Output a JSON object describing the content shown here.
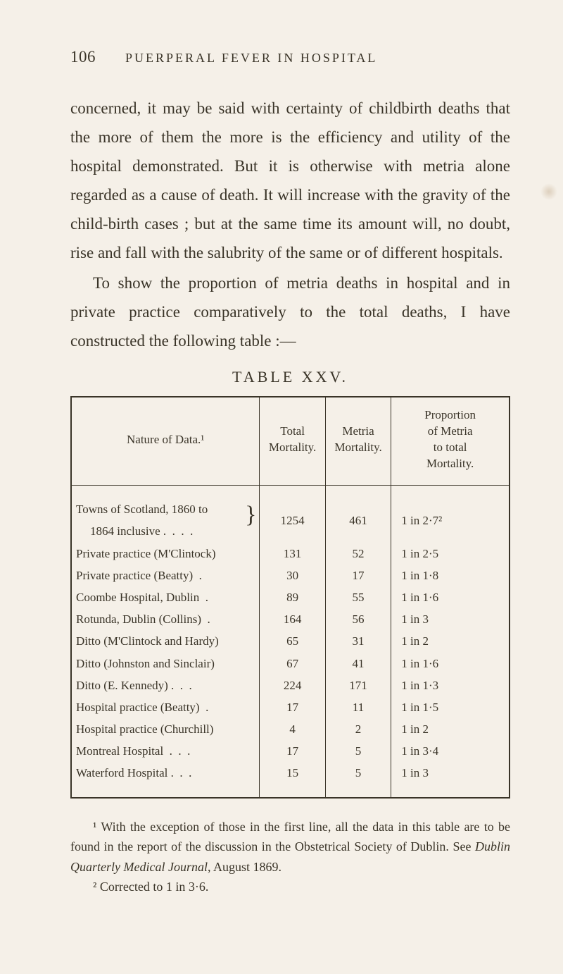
{
  "header": {
    "page_number": "106",
    "running_head": "PUERPERAL FEVER IN HOSPITAL"
  },
  "paragraphs": {
    "p1": "concerned, it may be said with certainty of childbirth deaths that the more of them the more is the efficiency and utility of the hospital demonstrated. But it is otherwise with metria alone regarded as a cause of death. It will increase with the gravity of the child-birth cases ; but at the same time its amount will, no doubt, rise and fall with the salubrity of the same or of different hospitals.",
    "p2": "To show the proportion of metria deaths in hospital and in private practice comparatively to the total deaths, I have constructed the following table :—"
  },
  "table": {
    "title": "TABLE XXV.",
    "columns": {
      "c1": "Nature of Data.¹",
      "c2": "Total Mortality.",
      "c3": "Metria Mortality.",
      "c4_line1": "Proportion",
      "c4_line2": "of Metria",
      "c4_line3": "to total",
      "c4_line4": "Mortality."
    },
    "rows": [
      {
        "nature_a": "Towns of Scotland, 1860 to",
        "nature_b": "1864 inclusive .  .  .  .",
        "brace": "}",
        "total": "1254",
        "metria": "461",
        "prop": "1 in 2·7²"
      },
      {
        "nature": "Private practice (M'Clintock)",
        "total": "131",
        "metria": "52",
        "prop": "1 in 2·5"
      },
      {
        "nature": "Private practice (Beatty)  .",
        "total": "30",
        "metria": "17",
        "prop": "1 in 1·8"
      },
      {
        "nature": "Coombe Hospital, Dublin  .",
        "total": "89",
        "metria": "55",
        "prop": "1 in 1·6"
      },
      {
        "nature": "Rotunda, Dublin (Collins)  .",
        "total": "164",
        "metria": "56",
        "prop": "1 in 3"
      },
      {
        "nature": "Ditto (M'Clintock and Hardy)",
        "total": "65",
        "metria": "31",
        "prop": "1 in 2"
      },
      {
        "nature": "Ditto (Johnston and Sinclair)",
        "total": "67",
        "metria": "41",
        "prop": "1 in 1·6"
      },
      {
        "nature": "Ditto (E. Kennedy) .  .  .",
        "total": "224",
        "metria": "171",
        "prop": "1 in 1·3"
      },
      {
        "nature": "Hospital practice (Beatty)  .",
        "total": "17",
        "metria": "11",
        "prop": "1 in 1·5"
      },
      {
        "nature": "Hospital practice (Churchill)",
        "total": "4",
        "metria": "2",
        "prop": "1 in 2"
      },
      {
        "nature": "Montreal Hospital  .  .  .",
        "total": "17",
        "metria": "5",
        "prop": "1 in 3·4"
      },
      {
        "nature": "Waterford Hospital .  .  .",
        "total": "15",
        "metria": "5",
        "prop": "1 in 3"
      }
    ]
  },
  "footnotes": {
    "f1_prefix": "¹ With the exception of those in the first line, all the data in this table are to be found in the report of the discussion in the Obstetrical Society of Dublin.  See ",
    "f1_italic": "Dublin Quarterly Medical Journal",
    "f1_suffix": ", August 1869.",
    "f2": "² Corrected to 1 in 3·6."
  },
  "colors": {
    "background": "#f5f0e8",
    "text": "#3a3428",
    "border": "#3a3428"
  }
}
